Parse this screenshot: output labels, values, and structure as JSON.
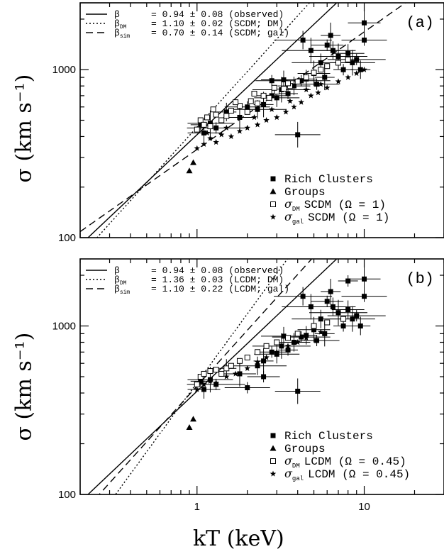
{
  "chart_data": [
    {
      "type": "scatter",
      "panel_label": "(a)",
      "x_scale": "log",
      "y_scale": "log",
      "xlim": [
        0.2,
        30
      ],
      "ylim": [
        100,
        2500
      ],
      "y_ticks": [
        100,
        1000
      ],
      "y_tick_labels": [
        "100",
        "1000"
      ],
      "ylabel": "σ (km s⁻¹)",
      "fit_lines": [
        {
          "label": "β = 0.94 ± 0.08 (observed)",
          "label_parts": {
            "symbol": "β",
            "sub": "",
            "text": "= 0.94 ± 0.08 (observed)"
          },
          "style": "solid",
          "slope": 0.94,
          "y_at_kT1": 410
        },
        {
          "label": "β_DM = 1.10 ± 0.02 (SCDM; DM)",
          "label_parts": {
            "symbol": "β",
            "sub": "DM",
            "text": "= 1.10 ± 0.02 (SCDM; DM)"
          },
          "style": "dotted",
          "slope": 1.1,
          "y_at_kT1": 455
        },
        {
          "label": "β_sim = 0.70 ± 0.14 (SCDM; gal)",
          "label_parts": {
            "symbol": "β",
            "sub": "sim",
            "text": "= 0.70 ± 0.14 (SCDM; gal)"
          },
          "style": "dashed",
          "slope": 0.7,
          "y_at_kT1": 335
        }
      ],
      "legend": [
        {
          "marker": "filled-square",
          "text": "Rich Clusters",
          "sym": "",
          "sub": ""
        },
        {
          "marker": "filled-triangle",
          "text": "Groups",
          "sym": "",
          "sub": ""
        },
        {
          "marker": "open-square",
          "text": "SCDM (Ω = 1)",
          "sym": "σ",
          "sub": "DM"
        },
        {
          "marker": "star",
          "text": "SCDM (Ω = 1)",
          "sym": "σ",
          "sub": "gal"
        }
      ],
      "series": [
        {
          "name": "Rich Clusters",
          "points": [
            [
              1.05,
              470
            ],
            [
              1.1,
              420
            ],
            [
              1.2,
              480
            ],
            [
              1.3,
              450
            ],
            [
              1.5,
              560
            ],
            [
              1.8,
              520
            ],
            [
              2.0,
              600
            ],
            [
              2.3,
              580
            ],
            [
              2.5,
              620
            ],
            [
              2.8,
              700
            ],
            [
              3.0,
              680
            ],
            [
              3.2,
              760
            ],
            [
              3.5,
              720
            ],
            [
              3.8,
              800
            ],
            [
              4.0,
              410
            ],
            [
              4.2,
              860
            ],
            [
              4.5,
              880
            ],
            [
              5.0,
              950
            ],
            [
              5.2,
              820
            ],
            [
              5.5,
              1100
            ],
            [
              5.8,
              900
            ],
            [
              6.0,
              1400
            ],
            [
              6.5,
              1300
            ],
            [
              7.0,
              1200
            ],
            [
              7.5,
              1000
            ],
            [
              8.0,
              1250
            ],
            [
              8.5,
              1100
            ],
            [
              9.0,
              1150
            ],
            [
              9.5,
              1000
            ],
            [
              10.0,
              1900
            ],
            [
              10.0,
              1500
            ],
            [
              4.3,
              1500
            ],
            [
              6.3,
              1600
            ],
            [
              2.8,
              860
            ],
            [
              3.3,
              870
            ],
            [
              4.8,
              1300
            ]
          ]
        },
        {
          "name": "Groups",
          "points": [
            [
              0.9,
              250
            ],
            [
              0.95,
              280
            ]
          ]
        },
        {
          "name": "σDM SCDM (Ω = 1)",
          "points": [
            [
              1.0,
              440
            ],
            [
              1.05,
              500
            ],
            [
              1.1,
              470
            ],
            [
              1.15,
              520
            ],
            [
              1.2,
              460
            ],
            [
              1.3,
              540
            ],
            [
              1.4,
              500
            ],
            [
              1.5,
              530
            ],
            [
              1.6,
              570
            ],
            [
              1.8,
              610
            ],
            [
              2.0,
              560
            ],
            [
              2.1,
              650
            ],
            [
              2.3,
              630
            ],
            [
              2.5,
              700
            ],
            [
              2.7,
              680
            ],
            [
              3.0,
              740
            ],
            [
              3.3,
              770
            ],
            [
              3.6,
              800
            ],
            [
              4.0,
              850
            ],
            [
              4.5,
              900
            ],
            [
              5.0,
              960
            ],
            [
              5.5,
              1000
            ],
            [
              6.0,
              1050
            ],
            [
              7.0,
              1100
            ],
            [
              8.0,
              1150
            ],
            [
              1.25,
              580
            ],
            [
              1.7,
              640
            ],
            [
              2.2,
              720
            ],
            [
              2.9,
              780
            ],
            [
              3.5,
              830
            ]
          ]
        },
        {
          "name": "σgal SCDM (Ω = 1)",
          "points": [
            [
              1.0,
              340
            ],
            [
              1.1,
              360
            ],
            [
              1.2,
              390
            ],
            [
              1.3,
              370
            ],
            [
              1.4,
              410
            ],
            [
              1.6,
              400
            ],
            [
              1.8,
              430
            ],
            [
              2.0,
              450
            ],
            [
              2.3,
              470
            ],
            [
              2.6,
              500
            ],
            [
              3.0,
              520
            ],
            [
              3.4,
              560
            ],
            [
              3.8,
              600
            ],
            [
              4.2,
              640
            ],
            [
              4.8,
              700
            ],
            [
              5.3,
              730
            ],
            [
              6.0,
              780
            ],
            [
              7.0,
              850
            ],
            [
              8.0,
              900
            ],
            [
              9.0,
              950
            ],
            [
              10.0,
              1000
            ],
            [
              1.15,
              420
            ],
            [
              1.5,
              450
            ],
            [
              2.2,
              520
            ],
            [
              2.8,
              580
            ],
            [
              3.6,
              650
            ],
            [
              4.5,
              760
            ],
            [
              5.5,
              820
            ]
          ]
        }
      ]
    },
    {
      "type": "scatter",
      "panel_label": "(b)",
      "x_scale": "log",
      "y_scale": "log",
      "xlim": [
        0.2,
        30
      ],
      "ylim": [
        100,
        2500
      ],
      "x_ticks": [
        1,
        10
      ],
      "x_tick_labels": [
        "1",
        "10"
      ],
      "y_ticks": [
        100,
        1000
      ],
      "y_tick_labels": [
        "100",
        "1000"
      ],
      "xlabel": "kT (keV)",
      "ylabel": "σ (km s⁻¹)",
      "fit_lines": [
        {
          "label": "β = 0.94 ± 0.08 (observed)",
          "label_parts": {
            "symbol": "β",
            "sub": "",
            "text": "= 0.94 ± 0.08 (observed)"
          },
          "style": "solid",
          "slope": 0.94,
          "y_at_kT1": 410
        },
        {
          "label": "β_DM = 1.36 ± 0.03 (LCDM; DM)",
          "label_parts": {
            "symbol": "β",
            "sub": "DM",
            "text": "= 1.36 ± 0.03 (LCDM; DM)"
          },
          "style": "dotted",
          "slope": 1.36,
          "y_at_kT1": 460
        },
        {
          "label": "β_sim = 1.10 ± 0.22 (LCDM; gal)",
          "label_parts": {
            "symbol": "β",
            "sub": "sim",
            "text": "= 1.10 ± 0.22 (LCDM; gal)"
          },
          "style": "dashed",
          "slope": 1.1,
          "y_at_kT1": 440
        }
      ],
      "legend": [
        {
          "marker": "filled-square",
          "text": "Rich Clusters",
          "sym": "",
          "sub": ""
        },
        {
          "marker": "filled-triangle",
          "text": "Groups",
          "sym": "",
          "sub": ""
        },
        {
          "marker": "open-square",
          "text": "LCDM (Ω = 0.45)",
          "sym": "σ",
          "sub": "DM"
        },
        {
          "marker": "star",
          "text": "LCDM (Ω = 0.45)",
          "sym": "σ",
          "sub": "gal"
        }
      ],
      "series": [
        {
          "name": "Rich Clusters",
          "points": [
            [
              1.05,
              470
            ],
            [
              1.1,
              420
            ],
            [
              1.2,
              480
            ],
            [
              1.3,
              450
            ],
            [
              1.5,
              560
            ],
            [
              1.8,
              520
            ],
            [
              2.0,
              430
            ],
            [
              2.3,
              580
            ],
            [
              2.5,
              620
            ],
            [
              2.8,
              700
            ],
            [
              3.0,
              680
            ],
            [
              3.2,
              760
            ],
            [
              3.5,
              720
            ],
            [
              3.8,
              800
            ],
            [
              4.0,
              410
            ],
            [
              4.2,
              860
            ],
            [
              4.5,
              880
            ],
            [
              5.0,
              950
            ],
            [
              5.2,
              820
            ],
            [
              5.5,
              1100
            ],
            [
              5.8,
              900
            ],
            [
              6.0,
              1400
            ],
            [
              6.5,
              1300
            ],
            [
              7.0,
              1200
            ],
            [
              7.5,
              1000
            ],
            [
              8.0,
              1250
            ],
            [
              8.5,
              1100
            ],
            [
              9.0,
              1150
            ],
            [
              9.5,
              1000
            ],
            [
              10.0,
              1900
            ],
            [
              10.0,
              1500
            ],
            [
              4.3,
              1500
            ],
            [
              6.3,
              1600
            ],
            [
              2.5,
              500
            ],
            [
              3.3,
              870
            ],
            [
              4.8,
              1300
            ],
            [
              8.0,
              1850
            ]
          ]
        },
        {
          "name": "Groups",
          "points": [
            [
              0.9,
              250
            ],
            [
              0.95,
              280
            ]
          ]
        },
        {
          "name": "σDM LCDM (Ω = 0.45)",
          "points": [
            [
              1.0,
              450
            ],
            [
              1.05,
              500
            ],
            [
              1.1,
              520
            ],
            [
              1.2,
              540
            ],
            [
              1.3,
              550
            ],
            [
              1.4,
              520
            ],
            [
              1.5,
              560
            ],
            [
              1.6,
              580
            ],
            [
              1.8,
              620
            ],
            [
              2.0,
              650
            ],
            [
              2.3,
              700
            ],
            [
              2.6,
              760
            ],
            [
              3.0,
              800
            ],
            [
              3.5,
              850
            ],
            [
              4.0,
              900
            ],
            [
              5.0,
              1000
            ],
            [
              6.0,
              1050
            ],
            [
              7.5,
              1100
            ]
          ]
        },
        {
          "name": "σgal LCDM (Ω = 0.45)",
          "points": [
            [
              1.0,
              420
            ],
            [
              1.1,
              450
            ],
            [
              1.2,
              470
            ],
            [
              1.3,
              460
            ],
            [
              1.5,
              500
            ],
            [
              1.7,
              520
            ],
            [
              2.0,
              560
            ],
            [
              2.3,
              610
            ],
            [
              2.6,
              650
            ],
            [
              3.0,
              700
            ],
            [
              3.5,
              760
            ],
            [
              4.0,
              800
            ],
            [
              4.5,
              850
            ],
            [
              5.5,
              920
            ]
          ]
        }
      ]
    }
  ]
}
